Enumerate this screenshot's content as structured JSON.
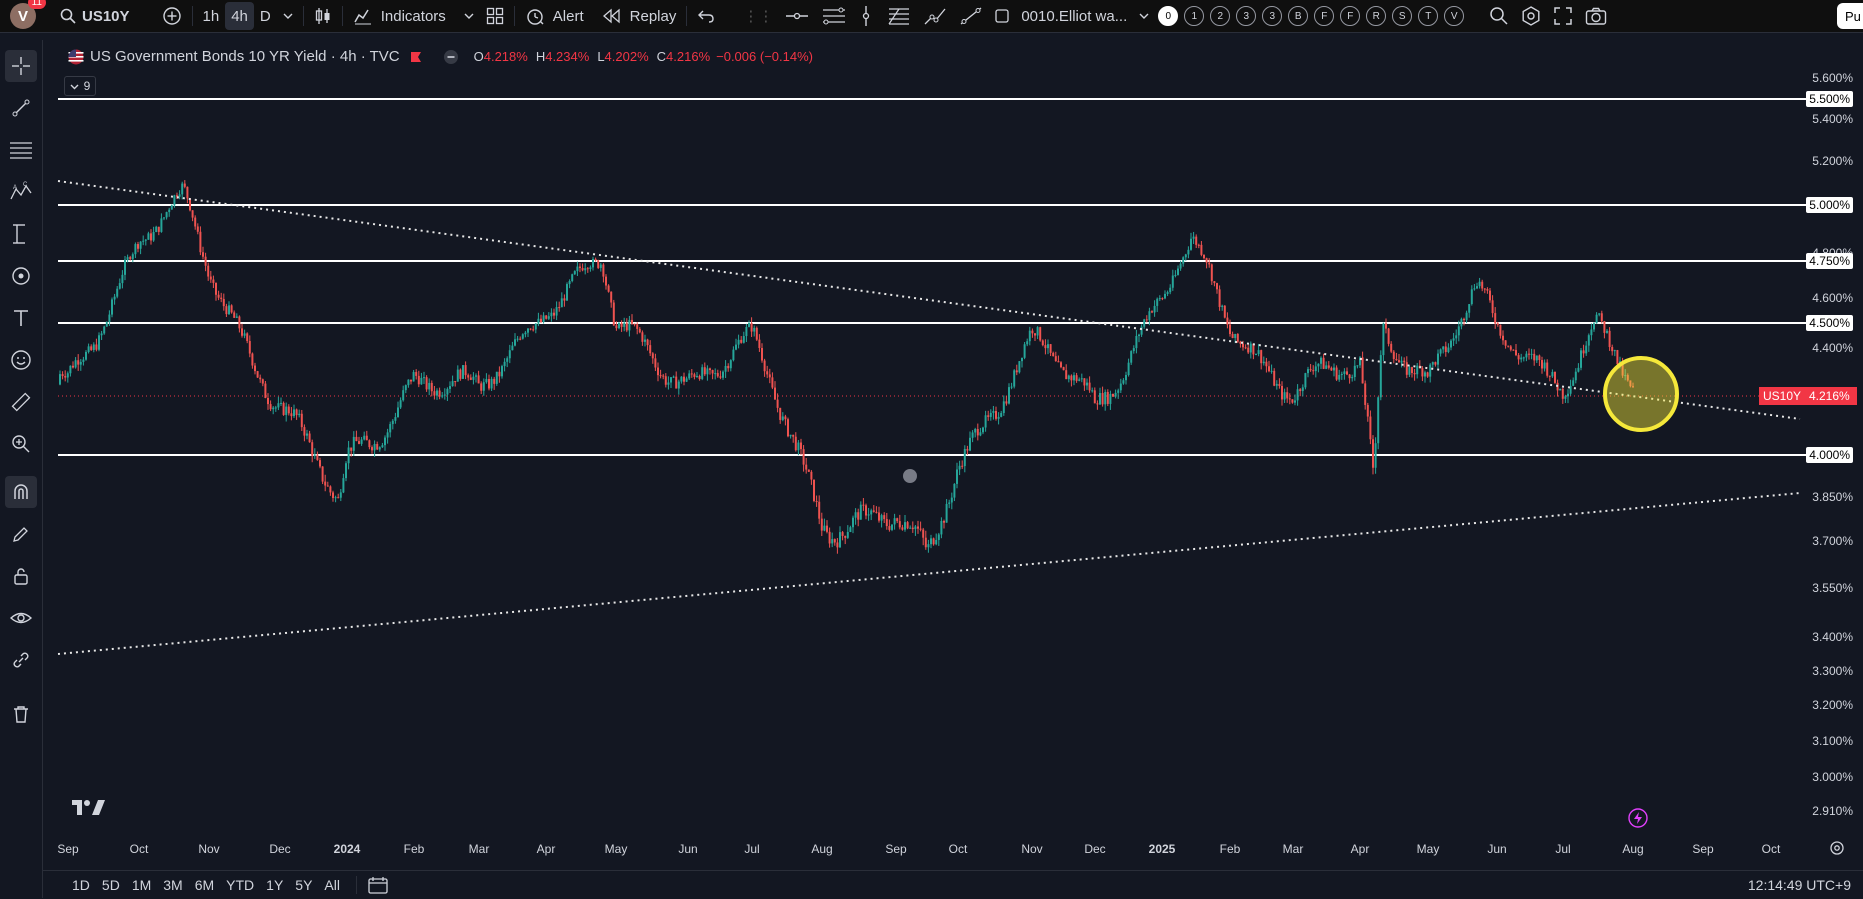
{
  "topbar": {
    "avatar_letter": "V",
    "notifications": "11",
    "symbol": "US10Y",
    "timeframes": [
      "1h",
      "4h",
      "D"
    ],
    "active_timeframe": "4h",
    "indicators_label": "Indicators",
    "alert_label": "Alert",
    "replay_label": "Replay",
    "layout_name": "0010.Elliot wa...",
    "layout_slots": [
      "0",
      "1",
      "2",
      "3",
      "3",
      "B",
      "F",
      "F",
      "R",
      "S",
      "T",
      "V"
    ],
    "publish_label": "Pu"
  },
  "legend": {
    "title": "US Government Bonds 10 YR Yield · 4h · TVC",
    "open_label": "O",
    "open": "4.218%",
    "high_label": "H",
    "high": "4.234%",
    "low_label": "L",
    "low": "4.202%",
    "close_label": "C",
    "close": "4.216%",
    "change": "−0.006 (−0.14%)",
    "collapsed_count": "9"
  },
  "price_axis": {
    "ticks": [
      "5.600%",
      "5.400%",
      "5.200%",
      "4.800%",
      "4.600%",
      "4.400%",
      "3.850%",
      "3.700%",
      "3.550%",
      "3.400%",
      "3.300%",
      "3.200%",
      "3.100%",
      "3.000%",
      "2.910%"
    ],
    "levels": [
      "5.500%",
      "5.000%",
      "4.750%",
      "4.500%",
      "4.000%"
    ],
    "symbol_tag": "US10Y",
    "current_price": "4.216%"
  },
  "time_axis": {
    "ticks": [
      "Sep",
      "Oct",
      "Nov",
      "Dec",
      "2024",
      "Feb",
      "Mar",
      "Apr",
      "May",
      "Jun",
      "Jul",
      "Aug",
      "Sep",
      "Oct",
      "Nov",
      "Dec",
      "2025",
      "Feb",
      "Mar",
      "Apr",
      "May",
      "Jun",
      "Jul",
      "Aug",
      "Sep",
      "Oct"
    ]
  },
  "bottombar": {
    "ranges": [
      "1D",
      "5D",
      "1M",
      "3M",
      "6M",
      "YTD",
      "1Y",
      "5Y",
      "All"
    ],
    "clock": "12:14:49 UTC+9"
  },
  "colors": {
    "background": "#131722",
    "up": "#26a69a",
    "down": "#ef5350",
    "highlight_circle": "#f5e83a",
    "price_line": "#f23645"
  },
  "chart_data": {
    "type": "candlestick",
    "symbol": "US10Y",
    "interval": "4h",
    "y_unit": "%",
    "ylim": [
      2.85,
      5.66
    ],
    "horizontal_levels": [
      5.5,
      5.0,
      4.75,
      4.5,
      4.0
    ],
    "current_price": 4.216,
    "approx_path": [
      {
        "x": "2023-09",
        "y": 4.26
      },
      {
        "x": "2023-10",
        "y": 4.85
      },
      {
        "x": "2023-10-20",
        "y": 5.0
      },
      {
        "x": "2023-11",
        "y": 4.7
      },
      {
        "x": "2023-12",
        "y": 4.2
      },
      {
        "x": "2023-12-27",
        "y": 3.8
      },
      {
        "x": "2024-01",
        "y": 3.95
      },
      {
        "x": "2024-02",
        "y": 4.3
      },
      {
        "x": "2024-03",
        "y": 4.2
      },
      {
        "x": "2024-04",
        "y": 4.6
      },
      {
        "x": "2024-04-25",
        "y": 4.73
      },
      {
        "x": "2024-05",
        "y": 4.45
      },
      {
        "x": "2024-06",
        "y": 4.3
      },
      {
        "x": "2024-07",
        "y": 4.4
      },
      {
        "x": "2024-08",
        "y": 3.8
      },
      {
        "x": "2024-09",
        "y": 3.75
      },
      {
        "x": "2024-09-16",
        "y": 3.62
      },
      {
        "x": "2024-10",
        "y": 4.0
      },
      {
        "x": "2024-11",
        "y": 4.4
      },
      {
        "x": "2024-12",
        "y": 4.2
      },
      {
        "x": "2025-01",
        "y": 4.6
      },
      {
        "x": "2025-01-14",
        "y": 4.8
      },
      {
        "x": "2025-02",
        "y": 4.5
      },
      {
        "x": "2025-03",
        "y": 4.25
      },
      {
        "x": "2025-04",
        "y": 4.3
      },
      {
        "x": "2025-04-07",
        "y": 3.9
      },
      {
        "x": "2025-04-11",
        "y": 4.5
      },
      {
        "x": "2025-05",
        "y": 4.3
      },
      {
        "x": "2025-05-22",
        "y": 4.6
      },
      {
        "x": "2025-06",
        "y": 4.45
      },
      {
        "x": "2025-07",
        "y": 4.3
      },
      {
        "x": "2025-07-15",
        "y": 4.48
      },
      {
        "x": "2025-08",
        "y": 4.216
      }
    ]
  }
}
